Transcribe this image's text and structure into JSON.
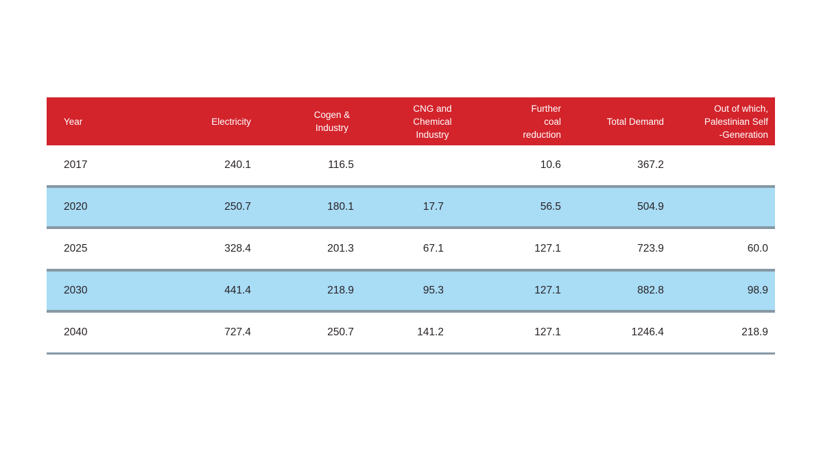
{
  "colors": {
    "header_bg": "#d3232b",
    "header_text": "#ffffff",
    "highlight_row_bg": "#a9dcf5",
    "divider": "#8698a4",
    "body_text": "#272224",
    "page_bg": "#ffffff"
  },
  "table": {
    "columns": [
      {
        "id": "year",
        "label": "Year"
      },
      {
        "id": "electricity",
        "label": "Electricity"
      },
      {
        "id": "cogen-industry",
        "label": "Cogen &\nIndustry"
      },
      {
        "id": "cng-chemical",
        "label": "CNG and\nChemical\nIndustry"
      },
      {
        "id": "coal-reduction",
        "label": "Further\ncoal\nreduction"
      },
      {
        "id": "total-demand",
        "label": "Total Demand"
      },
      {
        "id": "self-generation",
        "label": "Out of which,\nPalestinian Self\n-Generation"
      }
    ],
    "rows": [
      {
        "highlighted": false,
        "cells": [
          "2017",
          "240.1",
          "116.5",
          "",
          "10.6",
          "367.2",
          ""
        ]
      },
      {
        "highlighted": true,
        "cells": [
          "2020",
          "250.7",
          "180.1",
          "17.7",
          "56.5",
          "504.9",
          ""
        ]
      },
      {
        "highlighted": false,
        "cells": [
          "2025",
          "328.4",
          "201.3",
          "67.1",
          "127.1",
          "723.9",
          "60.0"
        ]
      },
      {
        "highlighted": true,
        "cells": [
          "2030",
          "441.4",
          "218.9",
          "95.3",
          "127.1",
          "882.8",
          "98.9"
        ]
      },
      {
        "highlighted": false,
        "cells": [
          "2040",
          "727.4",
          "250.7",
          "141.2",
          "127.1",
          "1246.4",
          "218.9"
        ]
      }
    ]
  },
  "chart_data": {
    "type": "table",
    "columns": [
      "Year",
      "Electricity",
      "Cogen & Industry",
      "CNG and Chemical Industry",
      "Further coal reduction",
      "Total Demand",
      "Out of which, Palestinian Self-Generation"
    ],
    "rows": [
      [
        "2017",
        240.1,
        116.5,
        null,
        10.6,
        367.2,
        null
      ],
      [
        "2020",
        250.7,
        180.1,
        17.7,
        56.5,
        504.9,
        null
      ],
      [
        "2025",
        328.4,
        201.3,
        67.1,
        127.1,
        723.9,
        60.0
      ],
      [
        "2030",
        441.4,
        218.9,
        95.3,
        127.1,
        882.8,
        98.9
      ],
      [
        "2040",
        727.4,
        250.7,
        141.2,
        127.1,
        1246.4,
        218.9
      ]
    ],
    "layout_hints": {
      "header_fill": "#d3232b",
      "zebra_highlight_rows": [
        "2020",
        "2030"
      ],
      "zebra_fill": "#a9dcf5"
    }
  }
}
